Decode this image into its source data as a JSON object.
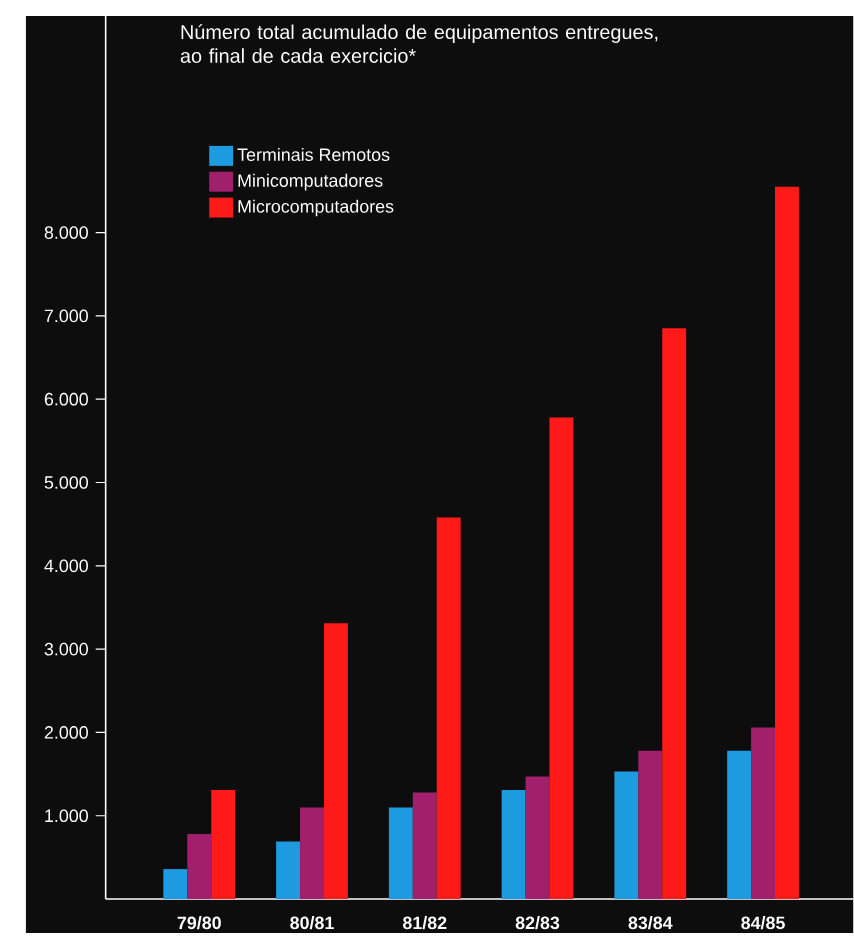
{
  "chart_data": {
    "type": "bar",
    "title": "Número total acumulado de equipamentos entregues, ao final de cada exercicio*",
    "categories": [
      "79/80",
      "80/81",
      "81/82",
      "82/83",
      "83/84",
      "84/85"
    ],
    "series": [
      {
        "name": "Terminais Remotos",
        "color": "#1e9be0",
        "values": [
          360,
          690,
          1100,
          1310,
          1530,
          1780
        ]
      },
      {
        "name": "Minicomputadores",
        "color": "#a0206e",
        "values": [
          780,
          1100,
          1280,
          1470,
          1780,
          2060
        ]
      },
      {
        "name": "Microcomputadores",
        "color": "#ff1a1a",
        "values": [
          1310,
          3310,
          4580,
          5780,
          6850,
          8550
        ]
      }
    ],
    "ylim": [
      0,
      10600
    ],
    "yticks": [
      {
        "value": 1000,
        "label": "1.000"
      },
      {
        "value": 2000,
        "label": "2.000"
      },
      {
        "value": 3000,
        "label": "3.000"
      },
      {
        "value": 4000,
        "label": "4.000"
      },
      {
        "value": 5000,
        "label": "5.000"
      },
      {
        "value": 6000,
        "label": "6.000"
      },
      {
        "value": 7000,
        "label": "7.000"
      },
      {
        "value": 8000,
        "label": "8.000"
      }
    ],
    "legend": "top left"
  }
}
